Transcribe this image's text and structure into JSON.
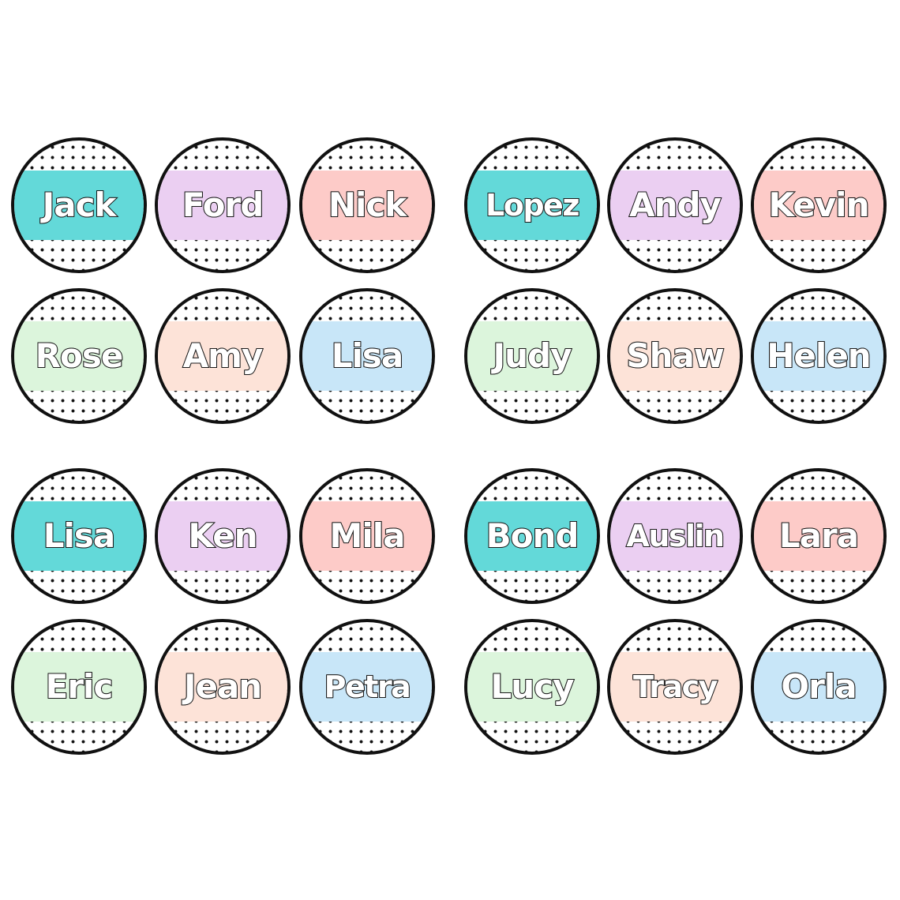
{
  "colors": {
    "teal": "#63d9d9",
    "lavender": "#ebcff2",
    "pink": "#fdcbc8",
    "mint": "#dcf5dc",
    "peach": "#fde3d8",
    "sky": "#c8e6f8",
    "outline": "#111111",
    "dots": "#111111"
  },
  "sheets": [
    {
      "labels": [
        {
          "name": "Jack",
          "color": "#63d9d9"
        },
        {
          "name": "Ford",
          "color": "#ebcff2"
        },
        {
          "name": "Nick",
          "color": "#fdcbc8"
        },
        {
          "name": "Rose",
          "color": "#dcf5dc"
        },
        {
          "name": "Amy",
          "color": "#fde3d8"
        },
        {
          "name": "Lisa",
          "color": "#c8e6f8"
        }
      ]
    },
    {
      "labels": [
        {
          "name": "Lopez",
          "color": "#63d9d9"
        },
        {
          "name": "Andy",
          "color": "#ebcff2"
        },
        {
          "name": "Kevin",
          "color": "#fdcbc8"
        },
        {
          "name": "Judy",
          "color": "#dcf5dc"
        },
        {
          "name": "Shaw",
          "color": "#fde3d8"
        },
        {
          "name": "Helen",
          "color": "#c8e6f8"
        }
      ]
    },
    {
      "labels": [
        {
          "name": "Lisa",
          "color": "#63d9d9"
        },
        {
          "name": "Ken",
          "color": "#ebcff2"
        },
        {
          "name": "Mila",
          "color": "#fdcbc8"
        },
        {
          "name": "Eric",
          "color": "#dcf5dc"
        },
        {
          "name": "Jean",
          "color": "#fde3d8"
        },
        {
          "name": "Petra",
          "color": "#c8e6f8"
        }
      ]
    },
    {
      "labels": [
        {
          "name": "Bond",
          "color": "#63d9d9"
        },
        {
          "name": "Auslin",
          "color": "#ebcff2"
        },
        {
          "name": "Lara",
          "color": "#fdcbc8"
        },
        {
          "name": "Lucy",
          "color": "#dcf5dc"
        },
        {
          "name": "Tracy",
          "color": "#fde3d8"
        },
        {
          "name": "Orla",
          "color": "#c8e6f8"
        }
      ]
    }
  ]
}
